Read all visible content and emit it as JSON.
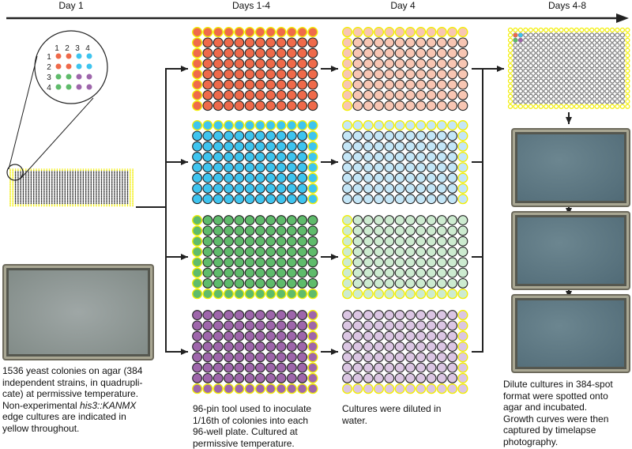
{
  "timeline": {
    "labels": [
      "Day 1",
      "Days 1-4",
      "Day 4",
      "Days 4-8"
    ]
  },
  "inset": {
    "col_labels": [
      "1",
      "2",
      "3",
      "4"
    ],
    "row_labels": [
      "1",
      "2",
      "3",
      "4"
    ]
  },
  "colors": {
    "edge_yellow": "#f2ee00",
    "red": "#ef6a4a",
    "blue": "#3ec4ef",
    "green": "#5fbb6b",
    "purple": "#9e66ab",
    "red_light": "#f8c6b3",
    "blue_light": "#c4e6f7",
    "green_light": "#cdebd0",
    "purple_light": "#dbc6e3"
  },
  "plates_96": [
    {
      "color": "red",
      "edge": [
        "top",
        "left"
      ]
    },
    {
      "color": "blue",
      "edge": [
        "top",
        "right"
      ]
    },
    {
      "color": "green",
      "edge": [
        "left",
        "bottom"
      ]
    },
    {
      "color": "purple",
      "edge": [
        "right",
        "bottom"
      ]
    }
  ],
  "captions": {
    "day1": [
      "1536 yeast colonies on agar (384",
      "independent strains, in quadrupli-",
      "cate) at permissive temperature.",
      "Non-experimental ",
      "his3::KANMX",
      "edge cultures are indicated in",
      "yellow throughout."
    ],
    "days1_4": [
      "96-pin tool used to inoculate",
      "1/16th of colonies into each",
      "96-well plate.  Cultured at",
      "permissive temperature."
    ],
    "day4": [
      "Cultures were diluted in",
      "water."
    ],
    "days4_8": [
      "Dilute cultures in 384-spot",
      "format were spotted onto",
      "agar and incubated.",
      "Growth curves were then",
      "captured by timelapse",
      "photography."
    ]
  }
}
